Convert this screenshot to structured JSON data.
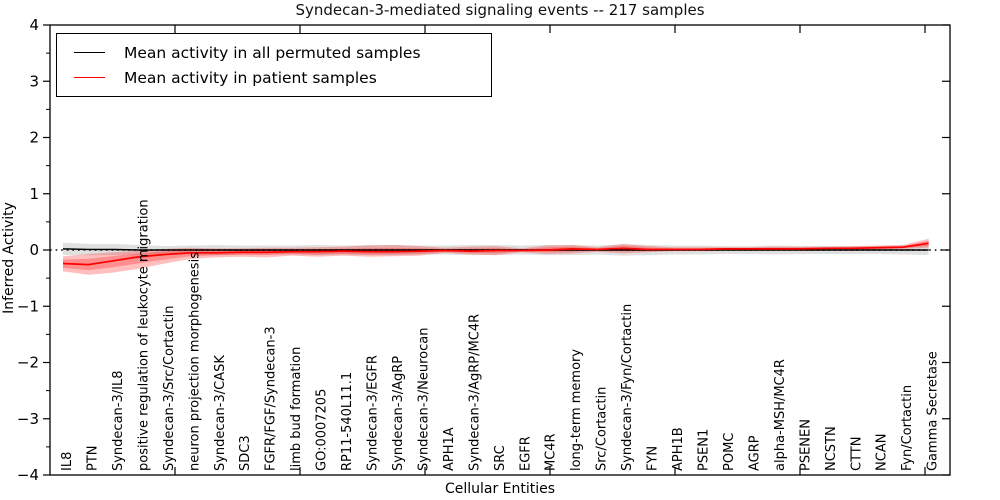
{
  "chart_data": {
    "type": "line",
    "title": "Syndecan-3-mediated signaling events -- 217 samples",
    "xlabel": "Cellular Entities",
    "ylabel": "Inferred Activity",
    "ylim": [
      -4,
      4
    ],
    "yticks": [
      4,
      3,
      2,
      1,
      0,
      -1,
      -2,
      -3,
      -4
    ],
    "grid": false,
    "zero_line": true,
    "legend_position": "upper-left",
    "categories": [
      "IL8",
      "PTN",
      "Syndecan-3/IL8",
      "positive regulation of leukocyte migration",
      "Syndecan-3/Src/Cortactin",
      "neuron projection morphogenesis",
      "Syndecan-3/CASK",
      "SDC3",
      "FGFR/FGF/Syndecan-3",
      "limb bud formation",
      "GO:0007205",
      "RP11-540L11.1",
      "Syndecan-3/EGFR",
      "Syndecan-3/AgRP",
      "Syndecan-3/Neurocan",
      "APH1A",
      "Syndecan-3/AgRP/MC4R",
      "SRC",
      "EGFR",
      "MC4R",
      "long-term memory",
      "Src/Cortactin",
      "Syndecan-3/Fyn/Cortactin",
      "FYN",
      "APH1B",
      "PSEN1",
      "POMC",
      "AGRP",
      "alpha-MSH/MC4R",
      "PSENEN",
      "NCSTN",
      "CTTN",
      "NCAN",
      "Fyn/Cortactin",
      "Gamma Secretase"
    ],
    "series": [
      {
        "name": "Mean activity in all permuted samples",
        "color": "#000000",
        "band_color": "rgba(0,0,0,0.12)",
        "values": [
          0.02,
          0.01,
          0.01,
          0.0,
          0.0,
          0.0,
          0.0,
          0.0,
          0.0,
          0.0,
          0.0,
          0.0,
          0.0,
          0.0,
          0.0,
          0.0,
          0.0,
          0.0,
          0.0,
          0.0,
          0.0,
          0.0,
          0.0,
          0.0,
          0.0,
          0.0,
          0.0,
          0.0,
          0.0,
          0.0,
          0.0,
          0.0,
          0.0,
          0.0,
          0.0
        ],
        "band_lower": [
          -0.09,
          -0.09,
          -0.09,
          -0.09,
          -0.07,
          -0.08,
          -0.09,
          -0.08,
          -0.08,
          -0.08,
          -0.09,
          -0.08,
          -0.09,
          -0.09,
          -0.08,
          -0.08,
          -0.09,
          -0.09,
          -0.08,
          -0.09,
          -0.09,
          -0.08,
          -0.1,
          -0.09,
          -0.08,
          -0.08,
          -0.07,
          -0.07,
          -0.08,
          -0.07,
          -0.07,
          -0.07,
          -0.07,
          -0.08,
          -0.09
        ],
        "band_upper": [
          0.13,
          0.11,
          0.11,
          0.09,
          0.07,
          0.08,
          0.09,
          0.08,
          0.08,
          0.08,
          0.09,
          0.08,
          0.09,
          0.09,
          0.08,
          0.08,
          0.09,
          0.09,
          0.08,
          0.09,
          0.09,
          0.08,
          0.1,
          0.09,
          0.08,
          0.08,
          0.07,
          0.07,
          0.08,
          0.07,
          0.07,
          0.07,
          0.07,
          0.08,
          0.09
        ]
      },
      {
        "name": "Mean activity in patient samples",
        "color": "#ff0000",
        "band_color": "rgba(255,0,0,0.25)",
        "values": [
          -0.24,
          -0.26,
          -0.19,
          -0.12,
          -0.08,
          -0.05,
          -0.05,
          -0.04,
          -0.04,
          -0.03,
          -0.03,
          -0.02,
          -0.03,
          -0.03,
          -0.02,
          -0.01,
          -0.02,
          -0.01,
          -0.01,
          0.0,
          0.02,
          0.01,
          0.03,
          0.01,
          0.01,
          0.01,
          0.02,
          0.02,
          0.02,
          0.02,
          0.03,
          0.03,
          0.04,
          0.05,
          0.12
        ],
        "band_lower": [
          -0.38,
          -0.44,
          -0.4,
          -0.33,
          -0.24,
          -0.16,
          -0.13,
          -0.12,
          -0.13,
          -0.1,
          -0.12,
          -0.1,
          -0.12,
          -0.11,
          -0.1,
          -0.05,
          -0.08,
          -0.09,
          -0.04,
          -0.07,
          -0.06,
          -0.03,
          -0.06,
          -0.04,
          -0.02,
          -0.02,
          -0.01,
          -0.01,
          -0.01,
          0.0,
          0.0,
          0.0,
          0.01,
          0.02,
          0.04
        ],
        "band_upper": [
          -0.11,
          -0.07,
          -0.04,
          -0.01,
          0.02,
          0.04,
          0.03,
          0.03,
          0.04,
          0.04,
          0.05,
          0.06,
          0.08,
          0.09,
          0.07,
          0.04,
          0.06,
          0.07,
          0.03,
          0.08,
          0.09,
          0.05,
          0.11,
          0.07,
          0.05,
          0.05,
          0.05,
          0.05,
          0.06,
          0.06,
          0.06,
          0.07,
          0.08,
          0.09,
          0.2
        ]
      }
    ]
  }
}
